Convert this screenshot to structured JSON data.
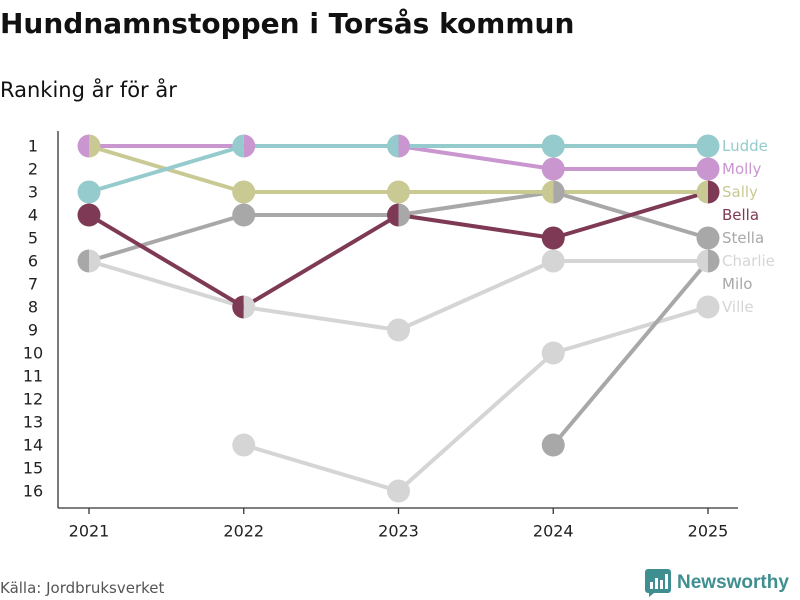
{
  "title": "Hundnamnstoppen i Torsås kommun",
  "subtitle": "Ranking år för år",
  "source": "Källa: Jordbruksverket",
  "logo": {
    "text": "Newsworthy",
    "color": "#3f8f91",
    "icon": "bar-chart-speech-bubble-icon"
  },
  "chart_data": {
    "type": "line",
    "subtype": "bump",
    "x": [
      2021,
      2022,
      2023,
      2024,
      2025
    ],
    "y_ticks": [
      1,
      2,
      3,
      4,
      5,
      6,
      7,
      8,
      9,
      10,
      11,
      12,
      13,
      14,
      15,
      16
    ],
    "ylim": [
      1,
      16
    ],
    "y_inverted": true,
    "xlabel": "",
    "ylabel": "",
    "grid": false,
    "legend": "right",
    "series": [
      {
        "name": "Ludde",
        "color": "#95cbcc",
        "values": [
          3,
          1,
          1,
          1,
          1
        ]
      },
      {
        "name": "Molly",
        "color": "#c996d0",
        "values": [
          1,
          1,
          1,
          2,
          2
        ]
      },
      {
        "name": "Sally",
        "color": "#c9c994",
        "values": [
          1,
          3,
          3,
          3,
          3
        ]
      },
      {
        "name": "Bella",
        "color": "#7e3a54",
        "values": [
          4,
          8,
          4,
          5,
          3
        ]
      },
      {
        "name": "Stella",
        "color": "#a8a8a8",
        "values": [
          6,
          4,
          4,
          3,
          5
        ]
      },
      {
        "name": "Charlie",
        "color": "#d5d5d5",
        "values": [
          6,
          8,
          9,
          6,
          6
        ]
      },
      {
        "name": "Milo",
        "color": "#a8a8a8",
        "values": [
          null,
          null,
          null,
          14,
          6
        ]
      },
      {
        "name": "Ville",
        "color": "#d5d5d5",
        "values": [
          null,
          14,
          16,
          10,
          8
        ]
      }
    ]
  }
}
